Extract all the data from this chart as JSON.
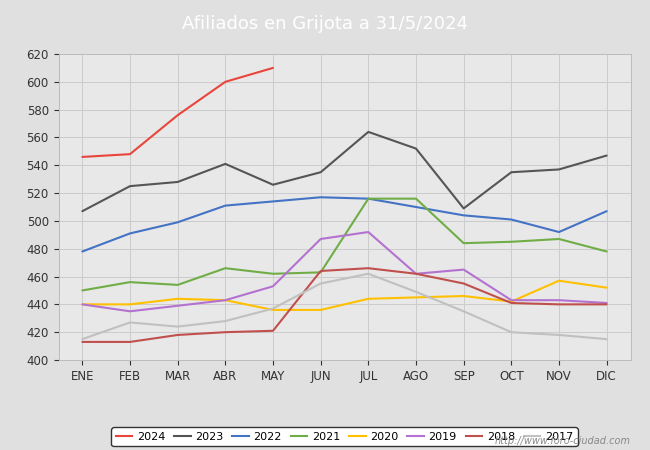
{
  "title": "Afiliados en Grijota a 31/5/2024",
  "header_bg": "#5b9bd5",
  "ylim": [
    400,
    620
  ],
  "yticks": [
    400,
    420,
    440,
    460,
    480,
    500,
    520,
    540,
    560,
    580,
    600,
    620
  ],
  "months": [
    "ENE",
    "FEB",
    "MAR",
    "ABR",
    "MAY",
    "JUN",
    "JUL",
    "AGO",
    "SEP",
    "OCT",
    "NOV",
    "DIC"
  ],
  "series": {
    "2024": {
      "color": "#e8463c",
      "x": [
        1,
        2,
        3,
        4,
        5
      ],
      "data": [
        546,
        548,
        576,
        600,
        610
      ]
    },
    "2023": {
      "color": "#555555",
      "x": [
        1,
        2,
        3,
        4,
        5,
        6,
        7,
        8,
        9,
        10,
        11,
        12
      ],
      "data": [
        507,
        525,
        528,
        541,
        526,
        535,
        564,
        552,
        509,
        535,
        537,
        547
      ]
    },
    "2022": {
      "color": "#4472c4",
      "x": [
        1,
        2,
        3,
        4,
        5,
        6,
        7,
        8,
        9,
        10,
        11,
        12
      ],
      "data": [
        478,
        491,
        499,
        511,
        514,
        517,
        516,
        510,
        504,
        501,
        492,
        507
      ]
    },
    "2021": {
      "color": "#70ad47",
      "x": [
        1,
        2,
        3,
        4,
        5,
        6,
        7,
        8,
        9,
        10,
        11,
        12
      ],
      "data": [
        450,
        456,
        454,
        466,
        462,
        463,
        516,
        516,
        484,
        485,
        487,
        478
      ]
    },
    "2020": {
      "color": "#ffc000",
      "x": [
        1,
        2,
        3,
        4,
        5,
        6,
        7,
        8,
        9,
        10,
        11,
        12
      ],
      "data": [
        440,
        440,
        444,
        443,
        436,
        436,
        444,
        445,
        446,
        442,
        457,
        452
      ]
    },
    "2019": {
      "color": "#b472d0",
      "x": [
        1,
        2,
        3,
        4,
        5,
        6,
        7,
        8,
        9,
        10,
        11,
        12
      ],
      "data": [
        440,
        435,
        439,
        443,
        453,
        487,
        492,
        462,
        465,
        443,
        443,
        441
      ]
    },
    "2018": {
      "color": "#c0504d",
      "x": [
        1,
        2,
        3,
        4,
        5,
        6,
        7,
        8,
        9,
        10,
        11,
        12
      ],
      "data": [
        413,
        413,
        418,
        420,
        421,
        464,
        466,
        462,
        455,
        441,
        440,
        440
      ]
    },
    "2017": {
      "color": "#c0c0c0",
      "x": [
        1,
        2,
        3,
        4,
        5,
        6,
        7,
        8,
        9,
        10,
        11,
        12
      ],
      "data": [
        415,
        427,
        424,
        428,
        437,
        455,
        462,
        449,
        435,
        420,
        418,
        415
      ]
    }
  },
  "legend_order": [
    "2024",
    "2023",
    "2022",
    "2021",
    "2020",
    "2019",
    "2018",
    "2017"
  ],
  "grid_color": "#cccccc",
  "bg_color": "#e0e0e0",
  "plot_bg": "#e8e8e8",
  "footer_text": "http://www.foro-ciudad.com",
  "footer_color": "#888888"
}
